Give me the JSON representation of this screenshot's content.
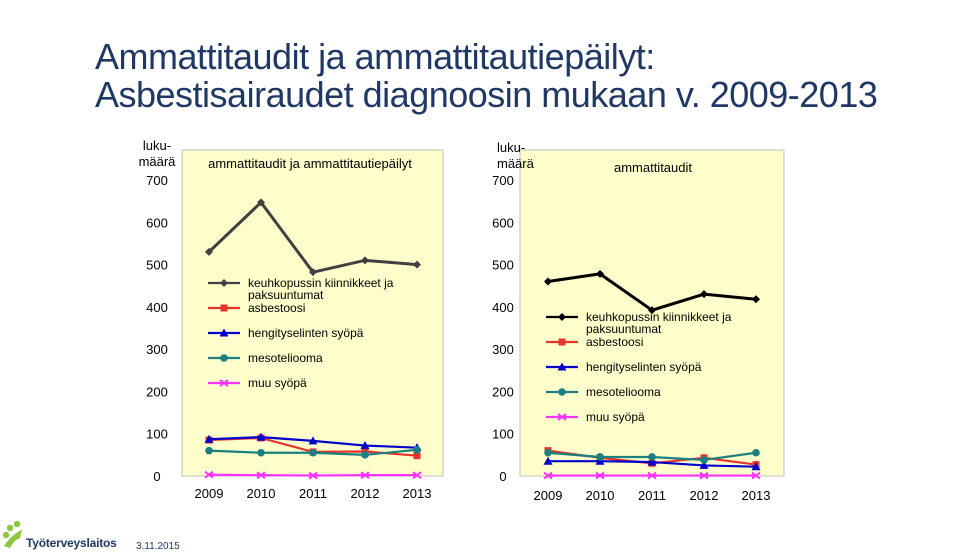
{
  "slide": {
    "title_line1": "Ammattitaudit ja ammattitautiepäilyt:",
    "title_line2": "Asbestisairaudet diagnoosin mukaan v. 2009-2013",
    "footer_org": "Työterveyslaitos",
    "footer_date": "3.11.2015",
    "title_color": "#1f3864"
  },
  "chart_data": [
    {
      "type": "line",
      "title": "ammattitaudit ja ammattitautiepäilyt",
      "ylabel": "luku-\nmäärä",
      "xlabel": "",
      "ylim": [
        0,
        700
      ],
      "yticks": [
        0,
        100,
        200,
        300,
        400,
        500,
        600,
        700
      ],
      "grid": false,
      "plot_background": "#ffffcc",
      "x": [
        "2009",
        "2010",
        "2011",
        "2012",
        "2013"
      ],
      "legend_lines": [
        [
          "keuhkopussin kiinnikkeet ja",
          "paksuuntumat"
        ],
        [
          "asbestoosi"
        ],
        [
          "hengityselinten syöpä"
        ],
        [
          "mesoteliooma"
        ],
        [
          "muu syöpä"
        ]
      ],
      "series": [
        {
          "name": "keuhkopussin kiinnikkeet ja paksuuntumat",
          "values": [
            530,
            647,
            482,
            510,
            500
          ],
          "color": "#404040",
          "marker": "diamond"
        },
        {
          "name": "asbestoosi",
          "values": [
            85,
            90,
            57,
            58,
            48
          ],
          "color": "#e8322d",
          "marker": "square"
        },
        {
          "name": "hengityselinten syöpä",
          "values": [
            87,
            92,
            83,
            72,
            67
          ],
          "color": "#0000cc",
          "marker": "triangle"
        },
        {
          "name": "mesoteliooma",
          "values": [
            60,
            55,
            55,
            50,
            62
          ],
          "color": "#1a8080",
          "marker": "circle"
        },
        {
          "name": "muu syöpä",
          "values": [
            3,
            2,
            1,
            2,
            2
          ],
          "color": "#ff33ff",
          "marker": "x"
        }
      ]
    },
    {
      "type": "line",
      "title": "ammattitaudit",
      "ylabel": "luku-\nmäärä",
      "xlabel": "",
      "ylim": [
        0,
        700
      ],
      "yticks": [
        0,
        100,
        200,
        300,
        400,
        500,
        600,
        700
      ],
      "grid": false,
      "plot_background": "#ffffcc",
      "x": [
        "2009",
        "2010",
        "2011",
        "2012",
        "2013"
      ],
      "legend_lines": [
        [
          "keuhkopussin kiinnikkeet ja",
          "paksuuntumat"
        ],
        [
          "asbestoosi"
        ],
        [
          "hengityselinten syöpä"
        ],
        [
          "mesoteliooma"
        ],
        [
          "muu syöpä"
        ]
      ],
      "series": [
        {
          "name": "keuhkopussin kiinnikkeet ja paksuuntumat",
          "values": [
            460,
            478,
            392,
            430,
            418
          ],
          "color": "#000000",
          "marker": "diamond"
        },
        {
          "name": "asbestoosi",
          "values": [
            60,
            43,
            30,
            43,
            27
          ],
          "color": "#e8322d",
          "marker": "square"
        },
        {
          "name": "hengityselinten syöpä",
          "values": [
            35,
            35,
            33,
            25,
            22
          ],
          "color": "#0000cc",
          "marker": "triangle"
        },
        {
          "name": "mesoteliooma",
          "values": [
            55,
            45,
            45,
            38,
            55
          ],
          "color": "#1a8080",
          "marker": "circle"
        },
        {
          "name": "muu syöpä",
          "values": [
            1,
            1,
            1,
            1,
            1
          ],
          "color": "#ff33ff",
          "marker": "x"
        }
      ]
    }
  ]
}
